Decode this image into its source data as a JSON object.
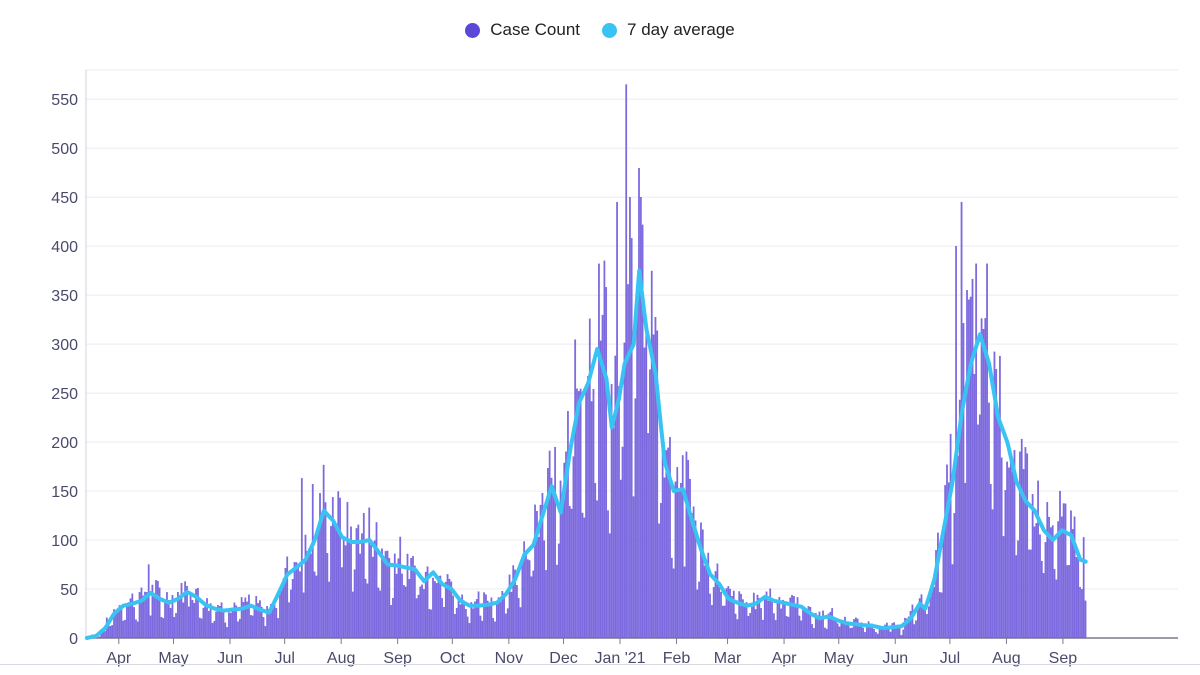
{
  "legend": {
    "items": [
      {
        "label": "Case Count",
        "color": "#5a48d8"
      },
      {
        "label": "7 day average",
        "color": "#38c3f3"
      }
    ]
  },
  "chart_data": {
    "type": "bar",
    "title": "",
    "xlabel": "",
    "ylabel": "",
    "ylim": [
      0,
      590
    ],
    "yticks": [
      0,
      50,
      100,
      150,
      200,
      250,
      300,
      350,
      400,
      450,
      500,
      550
    ],
    "x_tick_labels": [
      "Apr",
      "May",
      "Jun",
      "Jul",
      "Aug",
      "Sep",
      "Oct",
      "Nov",
      "Dec",
      "Jan '21",
      "Feb",
      "Mar",
      "Apr",
      "May",
      "Jun",
      "Jul",
      "Aug",
      "Sep"
    ],
    "x_tick_days": [
      18,
      48,
      79,
      109,
      140,
      171,
      201,
      232,
      262,
      293,
      324,
      352,
      383,
      413,
      444,
      474,
      505,
      536
    ],
    "total_days": 575,
    "bar_color": "#7d6ae0",
    "line_color": "#38c3f3",
    "series": [
      {
        "name": "7 day average",
        "anchors": [
          [
            0,
            0
          ],
          [
            5,
            2
          ],
          [
            10,
            10
          ],
          [
            15,
            25
          ],
          [
            20,
            33
          ],
          [
            25,
            35
          ],
          [
            30,
            38
          ],
          [
            35,
            46
          ],
          [
            40,
            40
          ],
          [
            45,
            36
          ],
          [
            50,
            40
          ],
          [
            55,
            47
          ],
          [
            60,
            42
          ],
          [
            65,
            34
          ],
          [
            70,
            30
          ],
          [
            75,
            28
          ],
          [
            80,
            29
          ],
          [
            85,
            30
          ],
          [
            90,
            33
          ],
          [
            95,
            29
          ],
          [
            100,
            26
          ],
          [
            105,
            45
          ],
          [
            110,
            65
          ],
          [
            115,
            72
          ],
          [
            120,
            80
          ],
          [
            125,
            100
          ],
          [
            130,
            130
          ],
          [
            135,
            120
          ],
          [
            140,
            103
          ],
          [
            145,
            98
          ],
          [
            150,
            98
          ],
          [
            155,
            100
          ],
          [
            160,
            88
          ],
          [
            165,
            75
          ],
          [
            170,
            74
          ],
          [
            175,
            72
          ],
          [
            180,
            70
          ],
          [
            185,
            58
          ],
          [
            190,
            67
          ],
          [
            195,
            55
          ],
          [
            200,
            50
          ],
          [
            205,
            38
          ],
          [
            210,
            33
          ],
          [
            215,
            33
          ],
          [
            220,
            34
          ],
          [
            225,
            36
          ],
          [
            230,
            45
          ],
          [
            235,
            60
          ],
          [
            240,
            85
          ],
          [
            245,
            95
          ],
          [
            250,
            125
          ],
          [
            255,
            155
          ],
          [
            260,
            128
          ],
          [
            265,
            190
          ],
          [
            270,
            240
          ],
          [
            275,
            260
          ],
          [
            280,
            295
          ],
          [
            285,
            265
          ],
          [
            288,
            215
          ],
          [
            292,
            245
          ],
          [
            295,
            280
          ],
          [
            300,
            300
          ],
          [
            303,
            375
          ],
          [
            307,
            315
          ],
          [
            312,
            270
          ],
          [
            317,
            180
          ],
          [
            322,
            150
          ],
          [
            327,
            152
          ],
          [
            332,
            120
          ],
          [
            337,
            90
          ],
          [
            342,
            65
          ],
          [
            347,
            55
          ],
          [
            352,
            40
          ],
          [
            357,
            36
          ],
          [
            362,
            33
          ],
          [
            367,
            35
          ],
          [
            372,
            42
          ],
          [
            377,
            38
          ],
          [
            382,
            36
          ],
          [
            387,
            34
          ],
          [
            392,
            32
          ],
          [
            397,
            25
          ],
          [
            402,
            20
          ],
          [
            407,
            22
          ],
          [
            412,
            18
          ],
          [
            417,
            15
          ],
          [
            422,
            14
          ],
          [
            427,
            13
          ],
          [
            432,
            12
          ],
          [
            437,
            10
          ],
          [
            442,
            11
          ],
          [
            447,
            12
          ],
          [
            452,
            20
          ],
          [
            457,
            35
          ],
          [
            460,
            30
          ],
          [
            465,
            60
          ],
          [
            470,
            110
          ],
          [
            475,
            160
          ],
          [
            480,
            230
          ],
          [
            485,
            280
          ],
          [
            490,
            310
          ],
          [
            495,
            280
          ],
          [
            500,
            225
          ],
          [
            505,
            200
          ],
          [
            510,
            160
          ],
          [
            515,
            140
          ],
          [
            520,
            130
          ],
          [
            525,
            110
          ],
          [
            530,
            100
          ],
          [
            535,
            110
          ],
          [
            540,
            105
          ],
          [
            545,
            80
          ],
          [
            548,
            78
          ]
        ]
      }
    ],
    "peaks": [
      [
        34,
        75
      ],
      [
        55,
        53
      ],
      [
        118,
        163
      ],
      [
        124,
        157
      ],
      [
        139,
        143
      ],
      [
        284,
        385
      ],
      [
        291,
        445
      ],
      [
        296,
        565
      ],
      [
        298,
        450
      ],
      [
        304,
        450
      ],
      [
        307,
        320
      ],
      [
        329,
        190
      ],
      [
        477,
        400
      ],
      [
        480,
        445
      ],
      [
        483,
        355
      ],
      [
        495,
        240
      ],
      [
        540,
        130
      ]
    ]
  }
}
